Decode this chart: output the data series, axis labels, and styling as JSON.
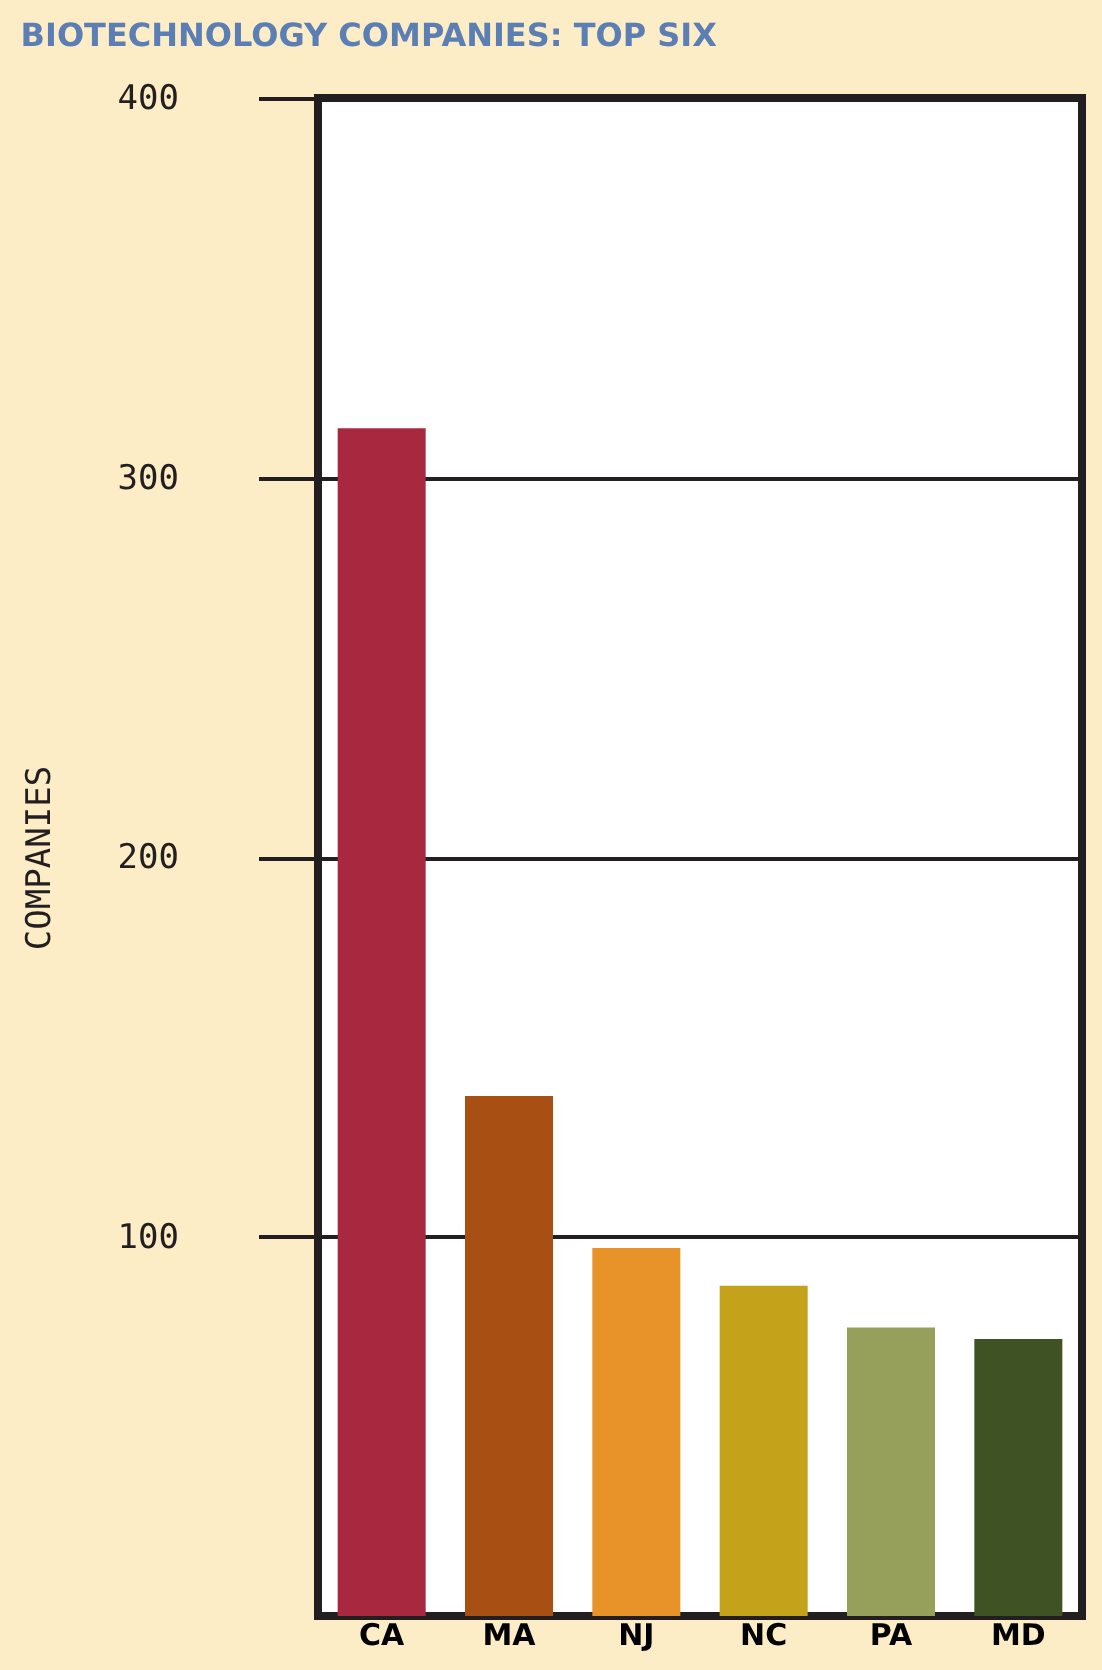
{
  "chart_data": {
    "type": "bar",
    "title": "BIOTECHNOLOGY COMPANIES: TOP SIX",
    "ylabel": "COMPANIES",
    "categories": [
      "CA",
      "MA",
      "NJ",
      "NC",
      "PA",
      "MD"
    ],
    "values": [
      313,
      137,
      97,
      87,
      76,
      73
    ],
    "colors": [
      "#a8283f",
      "#a84f14",
      "#e8922a",
      "#c4a21a",
      "#96a05a",
      "#3e5224"
    ],
    "ylim": [
      0,
      400
    ],
    "yticks": [
      100,
      200,
      300,
      400
    ],
    "grid": "y",
    "legend": false
  }
}
